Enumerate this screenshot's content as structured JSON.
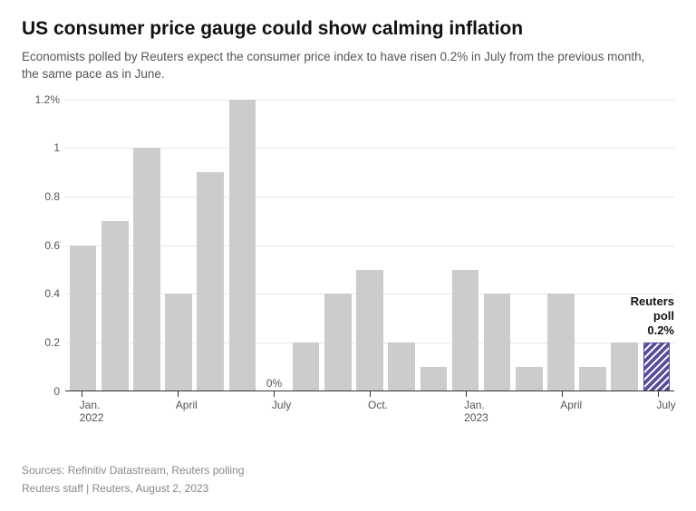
{
  "title": "US consumer price gauge could show calming inflation",
  "subtitle": "Economists polled by Reuters expect the consumer price index to have risen 0.2% in July from the previous month, the same pace as in June.",
  "chart": {
    "type": "bar",
    "background_color": "#ffffff",
    "bar_color": "#cccccc",
    "highlight_color": "#5a4a9c",
    "highlight_pattern": "diagonal-hatch",
    "grid_color": "#e6e6e6",
    "axis_color": "#333333",
    "text_color": "#555555",
    "ylim": [
      0,
      1.2
    ],
    "ytick_step": 0.2,
    "ytick_labels": [
      "0",
      "0.2",
      "0.4",
      "0.6",
      "0.8",
      "1",
      "1.2%"
    ],
    "y_label_fontsize": 12,
    "x_label_fontsize": 12,
    "title_fontsize": 21,
    "subtitle_fontsize": 13.5,
    "bar_width_ratio": 0.84,
    "categories": [
      "Jan 2022",
      "Feb 2022",
      "Mar 2022",
      "Apr 2022",
      "May 2022",
      "Jun 2022",
      "Jul 2022",
      "Aug 2022",
      "Sep 2022",
      "Oct 2022",
      "Nov 2022",
      "Dec 2022",
      "Jan 2023",
      "Feb 2023",
      "Mar 2023",
      "Apr 2023",
      "May 2023",
      "Jun 2023",
      "Jul 2023"
    ],
    "values": [
      0.6,
      0.7,
      1.0,
      0.4,
      0.9,
      1.2,
      0.0,
      0.2,
      0.4,
      0.5,
      0.2,
      0.1,
      0.5,
      0.4,
      0.1,
      0.4,
      0.1,
      0.2,
      0.2
    ],
    "highlight_index": 18,
    "zero_value_label": "0%",
    "x_tick_positions": [
      0,
      3,
      6,
      9,
      12,
      15,
      18
    ],
    "x_tick_labels": [
      "Jan.\n2022",
      "April",
      "July",
      "Oct.",
      "Jan.\n2023",
      "April",
      "July"
    ],
    "annotation": {
      "lines": [
        "Reuters",
        "poll",
        "0.2%"
      ],
      "target_index": 18
    }
  },
  "footer": {
    "sources": "Sources: Refinitiv Datastream, Reuters polling",
    "byline": "Reuters staff  |  Reuters, August 2, 2023"
  }
}
